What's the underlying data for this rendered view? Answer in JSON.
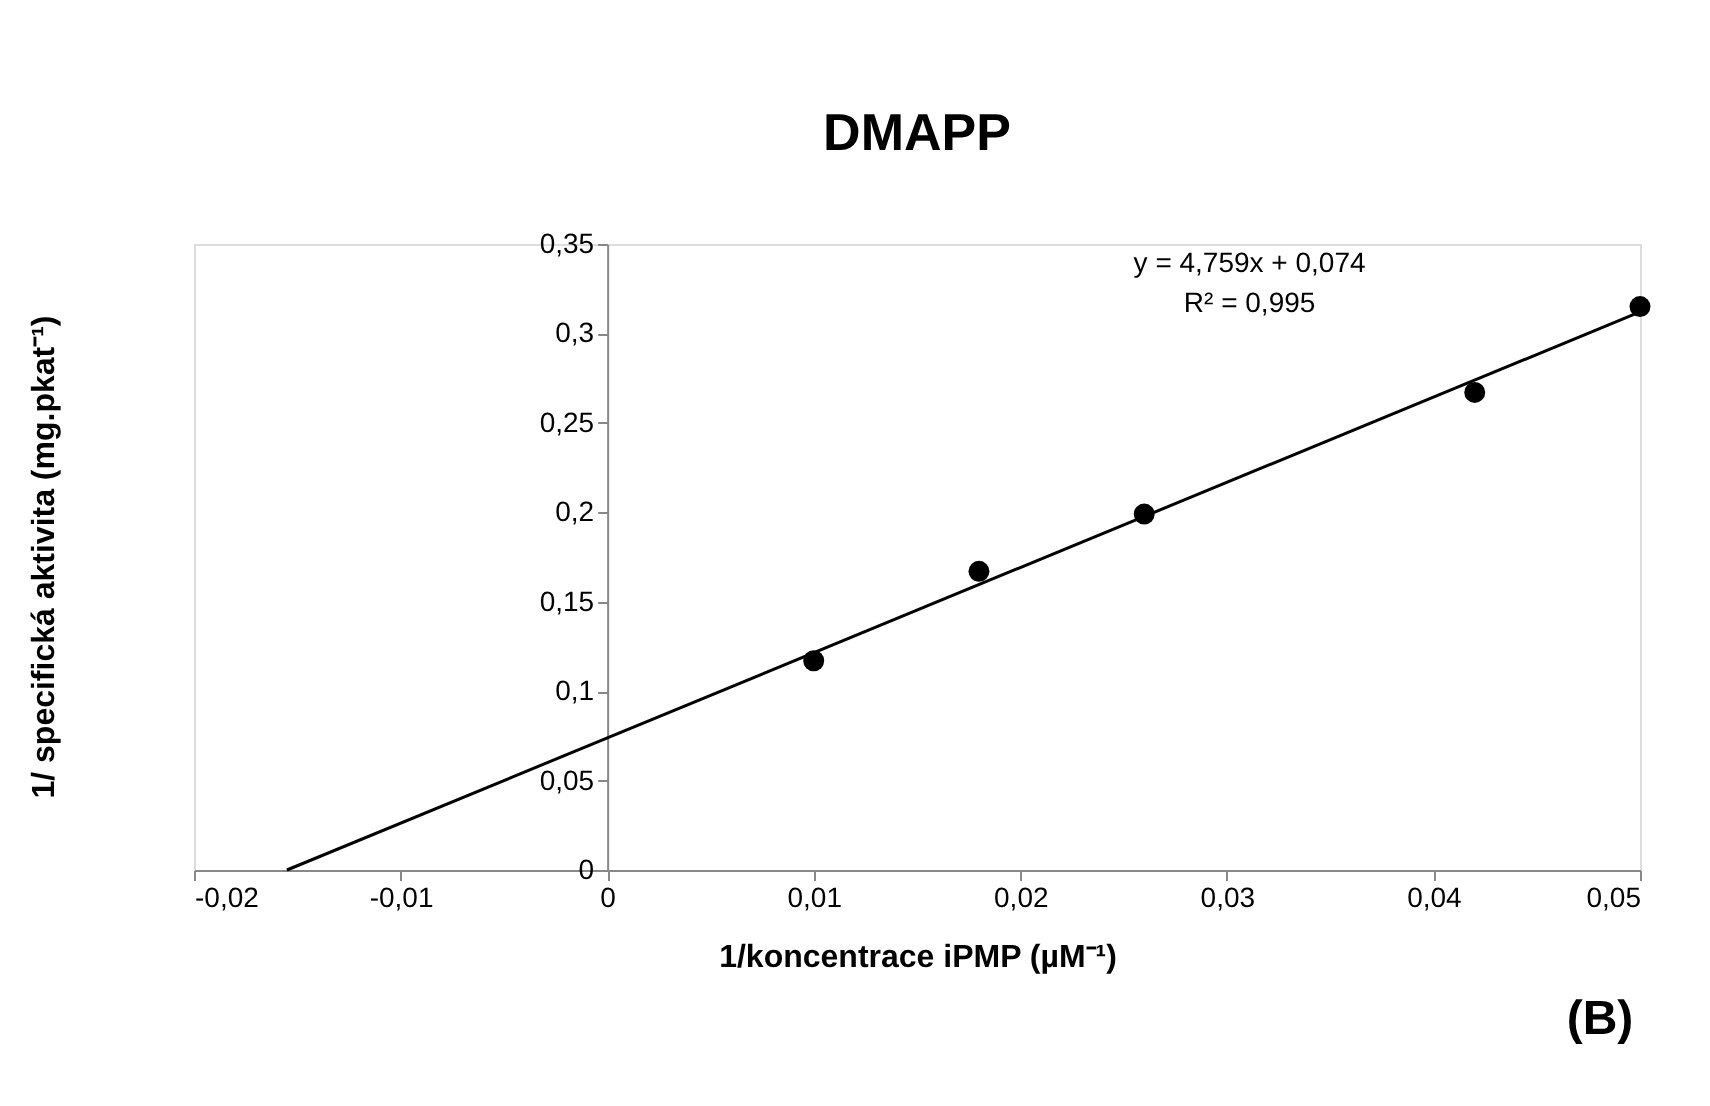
{
  "chart_data": {
    "type": "scatter",
    "title": "DMAPP",
    "xlabel": "1/koncentrace iPMP (µM⁻¹)",
    "ylabel": "1/ specifická aktivita (mg.pkat⁻¹)",
    "series": [
      {
        "type": "scatter",
        "color": "#000000",
        "marker": "circle",
        "x": [
          0.01,
          0.018,
          0.026,
          0.042,
          0.05
        ],
        "values": [
          0.117,
          0.167,
          0.199,
          0.267,
          0.315
        ]
      },
      {
        "type": "line",
        "color": "#000000",
        "line_style": "solid",
        "x": [
          -0.0155,
          0.05
        ],
        "values": [
          0.0,
          0.312
        ]
      }
    ],
    "xlim": [
      -0.02,
      0.05
    ],
    "ylim": [
      0,
      0.35
    ],
    "xticks": [
      {
        "value": -0.02,
        "label": "-0,02"
      },
      {
        "value": -0.01,
        "label": "-0,01"
      },
      {
        "value": 0,
        "label": "0"
      },
      {
        "value": 0.01,
        "label": "0,01"
      },
      {
        "value": 0.02,
        "label": "0,02"
      },
      {
        "value": 0.03,
        "label": "0,03"
      },
      {
        "value": 0.04,
        "label": "0,04"
      },
      {
        "value": 0.05,
        "label": "0,05"
      }
    ],
    "yticks": [
      0,
      {
        "value": 0.05,
        "label": "0,05"
      },
      {
        "value": 0.1,
        "label": "0,1"
      },
      {
        "value": 0.15,
        "label": "0,15"
      },
      {
        "value": 0.2,
        "label": "0,2"
      },
      {
        "value": 0.25,
        "label": "0,25"
      },
      {
        "value": 0.3,
        "label": "0,3"
      },
      {
        "value": 0.35,
        "label": "0,35"
      }
    ],
    "annotations": [
      "y = 4,759x + 0,074",
      "R² = 0,995",
      "(B)"
    ],
    "grid": false,
    "legend": false
  }
}
